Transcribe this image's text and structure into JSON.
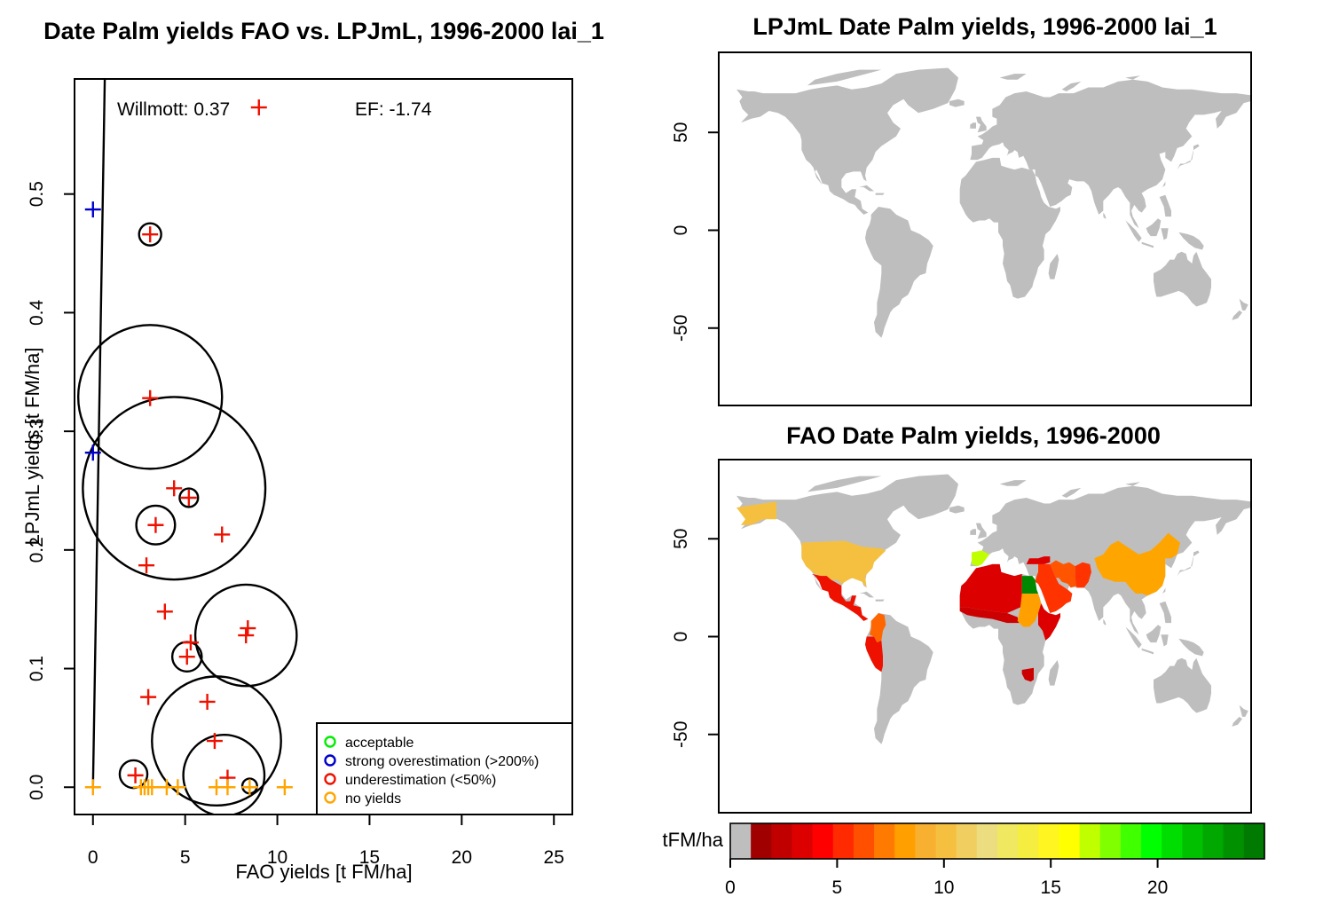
{
  "chart_data": [
    {
      "type": "scatter",
      "title": "Date Palm yields FAO vs. LPJmL, 1996-2000 lai_1",
      "xlabel": "FAO yields [t FM/ha]",
      "ylabel": "LPJmL yields [t FM/ha]",
      "xlim": [
        -1,
        26
      ],
      "ylim": [
        -0.023,
        0.597
      ],
      "xticks": [
        "0",
        "5",
        "10",
        "15",
        "20",
        "25"
      ],
      "xtick_values": [
        0,
        5,
        10,
        15,
        20,
        25
      ],
      "yticks": [
        "0.0",
        "0.1",
        "0.2",
        "0.3",
        "0.4",
        "0.5"
      ],
      "ytick_values": [
        0,
        0.1,
        0.2,
        0.3,
        0.4,
        0.5
      ],
      "annotations": {
        "willmott": "Willmott: 0.37",
        "ef": "EF: -1.74"
      },
      "line": {
        "x": [
          0,
          0.64
        ],
        "y": [
          0,
          0.597
        ]
      },
      "legend_placement": "bottom-right",
      "legend": [
        {
          "label": "acceptable",
          "color": "#00ee00"
        },
        {
          "label": "strong overestimation (>200%)",
          "color": "#0000cc"
        },
        {
          "label": "underestimation (<50%)",
          "color": "#ee1100"
        },
        {
          "label": "no yields",
          "color": "#ffa500"
        }
      ],
      "series": [
        {
          "name": "strong overestimation (>200%)",
          "color": "#0000cc",
          "points": [
            [
              0,
              0.487
            ],
            [
              0,
              0.282
            ]
          ]
        },
        {
          "name": "underestimation (<50%)",
          "color": "#ee1100",
          "points": [
            [
              9.0,
              0.573
            ],
            [
              3.1,
              0.466
            ],
            [
              3.1,
              0.328
            ],
            [
              4.4,
              0.252
            ],
            [
              5.2,
              0.244
            ],
            [
              3.4,
              0.221
            ],
            [
              7.0,
              0.213
            ],
            [
              2.9,
              0.187
            ],
            [
              3.9,
              0.148
            ],
            [
              8.4,
              0.134
            ],
            [
              8.3,
              0.128
            ],
            [
              5.3,
              0.122
            ],
            [
              5.1,
              0.11
            ],
            [
              3.0,
              0.076
            ],
            [
              6.2,
              0.072
            ],
            [
              6.6,
              0.039
            ],
            [
              2.3,
              0.01
            ],
            [
              7.3,
              0.008
            ]
          ]
        },
        {
          "name": "no yields",
          "color": "#ffa500",
          "points": [
            [
              0,
              0
            ],
            [
              2.6,
              0
            ],
            [
              2.8,
              0
            ],
            [
              3.0,
              0
            ],
            [
              3.2,
              0
            ],
            [
              4.0,
              0
            ],
            [
              4.6,
              0
            ],
            [
              6.7,
              0
            ],
            [
              7.3,
              0
            ],
            [
              8.5,
              0
            ],
            [
              10.4,
              0
            ]
          ]
        }
      ],
      "circles": [
        {
          "x": 3.1,
          "y": 0.466,
          "r": 0.6
        },
        {
          "x": 3.1,
          "y": 0.329,
          "r": 3.9
        },
        {
          "x": 4.4,
          "y": 0.252,
          "r": 4.95
        },
        {
          "x": 5.2,
          "y": 0.244,
          "r": 0.5
        },
        {
          "x": 3.4,
          "y": 0.221,
          "r": 1.05
        },
        {
          "x": 8.3,
          "y": 0.128,
          "r": 2.75
        },
        {
          "x": 5.1,
          "y": 0.11,
          "r": 0.8
        },
        {
          "x": 6.7,
          "y": 0.039,
          "r": 3.5
        },
        {
          "x": 7.1,
          "y": 0.01,
          "r": 2.2
        },
        {
          "x": 2.2,
          "y": 0.011,
          "r": 0.75
        },
        {
          "x": 8.5,
          "y": 0.001,
          "r": 0.4
        }
      ]
    },
    {
      "type": "heatmap",
      "title": "LPJmL Date Palm yields, 1996-2000 lai_1",
      "yticks": [
        "50",
        "0",
        "-50"
      ],
      "ytick_values": [
        50,
        0,
        -50
      ],
      "note": "all land shown grey (no modelled yield)"
    },
    {
      "type": "heatmap",
      "title": "FAO Date Palm yields, 1996-2000",
      "yticks": [
        "50",
        "0",
        "-50"
      ],
      "ytick_values": [
        50,
        0,
        -50
      ]
    }
  ],
  "colorbar": {
    "label": "tFM/ha",
    "range": [
      0,
      25
    ],
    "ticks": [
      "0",
      "5",
      "10",
      "15",
      "20"
    ],
    "tick_values": [
      0,
      5,
      10,
      15,
      20
    ],
    "colors": [
      "#bebebe",
      "#a00000",
      "#c00000",
      "#dd0000",
      "#ff0000",
      "#ff2a00",
      "#ff5000",
      "#ff7a00",
      "#ffa000",
      "#f8b030",
      "#f5c040",
      "#f0cf60",
      "#ebdd80",
      "#f0e860",
      "#f5ee40",
      "#fff520",
      "#ffff00",
      "#c0ff00",
      "#80ff00",
      "#40ff00",
      "#00ff00",
      "#00dd00",
      "#00c000",
      "#00a800",
      "#009000",
      "#007a00"
    ]
  },
  "map_colors": {
    "land": "#bebebe",
    "north_america": "#f5c040",
    "mexico": "#ee1100",
    "north_africa": "#dd0000",
    "sahel": "#cc0000",
    "egypt": "#008800",
    "spain": "#c0ff00",
    "sudan": "#ffa000",
    "middle_east": "#ff3300",
    "iran": "#ff5500",
    "china": "#ffa500",
    "andes": "#ee1100",
    "colombia": "#ff6600",
    "southern_africa": "#cc0000"
  }
}
